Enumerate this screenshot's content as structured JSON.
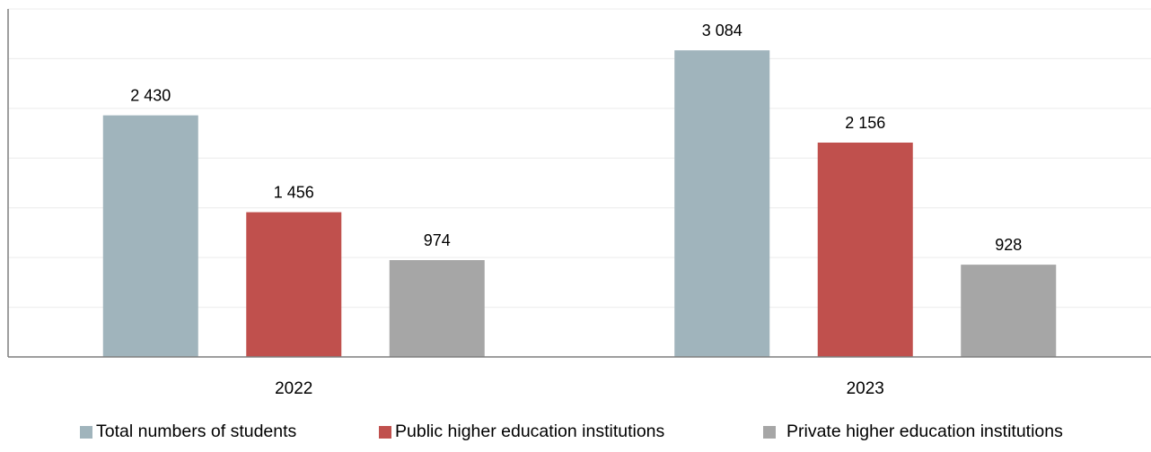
{
  "chart_data": {
    "type": "bar",
    "categories": [
      "2022",
      "2023"
    ],
    "series": [
      {
        "name": "Total numbers of students",
        "values": [
          2430,
          3084
        ],
        "labels": [
          "2 430",
          "3 084"
        ],
        "color": "#a0b4bc"
      },
      {
        "name": "Public higher education institutions",
        "values": [
          1456,
          2156
        ],
        "labels": [
          "1 456",
          "2 156"
        ],
        "color": "#c0504d"
      },
      {
        "name": "Private higher education institutions",
        "values": [
          974,
          928
        ],
        "labels": [
          "974",
          "928"
        ],
        "color": "#a6a6a6"
      }
    ],
    "ylim": [
      0,
      3500
    ],
    "ytick_step": 500,
    "y_tick_labels_shown": false,
    "grid": true,
    "legend_position": "bottom",
    "title": "",
    "xlabel": "",
    "ylabel": ""
  }
}
